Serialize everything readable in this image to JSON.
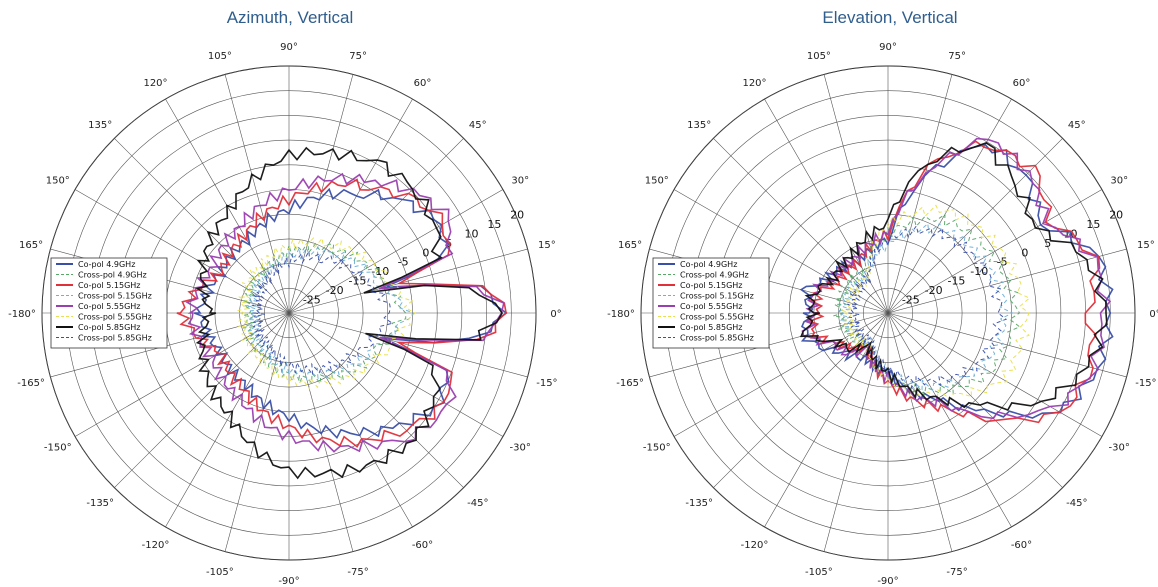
{
  "chart_data": [
    {
      "type": "polar-line",
      "title": "Azimuth, Vertical",
      "angle_ticks": [
        "0°",
        "15°",
        "30°",
        "45°",
        "60°",
        "75°",
        "90°",
        "105°",
        "120°",
        "135°",
        "150°",
        "165°",
        "-180°",
        "-165°",
        "-150°",
        "-135°",
        "-120°",
        "-105°",
        "-90°",
        "-75°",
        "-60°",
        "-45°",
        "-30°",
        "-15°"
      ],
      "r_ticks": [
        "-25",
        "-20",
        "-15",
        "-10",
        "-5",
        "0",
        "5",
        "10",
        "15",
        "20"
      ],
      "r_range": [
        -30,
        20
      ],
      "legend_position": "left",
      "legend": [
        "Co-pol 4.9GHz",
        "Cross-pol 4.9GHz",
        "Co-pol 5.15GHz",
        "Cross-pol 5.15GHz",
        "Co-pol 5.55GHz",
        "Cross-pol 5.55GHz",
        "Co-pol 5.85GHz",
        "Cross-pol 5.85GHz"
      ],
      "colors": [
        "#3a4fa8",
        "#58a868",
        "#e0303a",
        "#6fb0d8",
        "#9a3fb0",
        "#e8e050",
        "#111111",
        "#3a4fa8"
      ],
      "dashed": [
        false,
        true,
        false,
        true,
        false,
        true,
        false,
        true
      ],
      "series": [
        {
          "name": "Co-pol 4.9GHz",
          "angles": [
            -180,
            -150,
            -120,
            -90,
            -60,
            -45,
            -30,
            -20,
            -15,
            -8,
            0,
            8,
            15,
            20,
            30,
            45,
            60,
            90,
            120,
            150,
            180
          ],
          "values": [
            -12,
            -14,
            -13,
            -9,
            -2,
            2,
            6,
            3,
            -10,
            8,
            14,
            8,
            -10,
            3,
            6,
            2,
            -2,
            -9,
            -13,
            -14,
            -12
          ]
        },
        {
          "name": "Cross-pol 4.9GHz",
          "angles": [
            -180,
            -120,
            -60,
            -20,
            0,
            20,
            60,
            120,
            180
          ],
          "values": [
            -22,
            -20,
            -15,
            -10,
            -7,
            -10,
            -15,
            -20,
            -22
          ]
        },
        {
          "name": "Co-pol 5.15GHz",
          "angles": [
            -180,
            -150,
            -120,
            -90,
            -60,
            -45,
            -30,
            -20,
            -15,
            -8,
            0,
            8,
            15,
            20,
            30,
            45,
            60,
            90,
            120,
            150,
            180
          ],
          "values": [
            -8,
            -14,
            -12,
            -7,
            0,
            3,
            7,
            4,
            -8,
            9,
            15,
            9,
            -8,
            4,
            7,
            3,
            0,
            -7,
            -12,
            -14,
            -8
          ]
        },
        {
          "name": "Cross-pol 5.15GHz",
          "angles": [
            -180,
            -120,
            -60,
            -20,
            0,
            20,
            60,
            120,
            180
          ],
          "values": [
            -23,
            -21,
            -16,
            -11,
            -6,
            -11,
            -16,
            -21,
            -23
          ]
        },
        {
          "name": "Co-pol 5.55GHz",
          "angles": [
            -180,
            -150,
            -120,
            -90,
            -60,
            -45,
            -30,
            -20,
            -15,
            -8,
            0,
            8,
            15,
            20,
            30,
            45,
            60,
            90,
            120,
            150,
            180
          ],
          "values": [
            -10,
            -12,
            -10,
            -5,
            1,
            5,
            8,
            4,
            -12,
            9,
            14,
            9,
            -12,
            4,
            8,
            5,
            1,
            -5,
            -10,
            -12,
            -10
          ]
        },
        {
          "name": "Cross-pol 5.55GHz",
          "angles": [
            -180,
            -120,
            -60,
            -20,
            0,
            20,
            60,
            120,
            180
          ],
          "values": [
            -21,
            -19,
            -14,
            -9,
            -5,
            -9,
            -14,
            -19,
            -21
          ]
        },
        {
          "name": "Co-pol 5.85GHz",
          "angles": [
            -180,
            -150,
            -120,
            -90,
            -60,
            -45,
            -30,
            -20,
            -15,
            -8,
            0,
            8,
            15,
            20,
            30,
            45,
            60,
            90,
            120,
            150,
            180
          ],
          "values": [
            -14,
            -10,
            -6,
            2,
            5,
            6,
            4,
            2,
            -14,
            8,
            13,
            8,
            -14,
            2,
            4,
            6,
            5,
            2,
            -6,
            -10,
            -14
          ]
        },
        {
          "name": "Cross-pol 5.85GHz",
          "angles": [
            -180,
            -120,
            -60,
            -20,
            0,
            20,
            60,
            120,
            180
          ],
          "values": [
            -24,
            -22,
            -17,
            -13,
            -9,
            -13,
            -17,
            -22,
            -24
          ]
        }
      ]
    },
    {
      "type": "polar-line",
      "title": "Elevation, Vertical",
      "angle_ticks": [
        "0°",
        "15°",
        "30°",
        "45°",
        "60°",
        "75°",
        "90°",
        "105°",
        "120°",
        "135°",
        "150°",
        "165°",
        "-180°",
        "-165°",
        "-150°",
        "-135°",
        "-120°",
        "-105°",
        "-90°",
        "-75°",
        "-60°",
        "-45°",
        "-30°",
        "-15°"
      ],
      "r_ticks": [
        "-25",
        "-20",
        "-15",
        "-10",
        "-5",
        "0",
        "5",
        "10",
        "15",
        "20"
      ],
      "r_range": [
        -30,
        20
      ],
      "legend_position": "left",
      "legend": [
        "Co-pol 4.9GHz",
        "Cross-pol 4.9GHz",
        "Co-pol 5.15GHz",
        "Cross-pol 5.15GHz",
        "Co-pol 5.55GHz",
        "Cross-pol 5.55GHz",
        "Co-pol 5.85GHz",
        "Cross-pol 5.85GHz"
      ],
      "colors": [
        "#3a4fa8",
        "#58a868",
        "#e0303a",
        "#6fb0d8",
        "#9a3fb0",
        "#e8e050",
        "#111111",
        "#3a4fa8"
      ],
      "dashed": [
        false,
        true,
        false,
        true,
        false,
        true,
        false,
        true
      ],
      "series": [
        {
          "name": "Co-pol 4.9GHz",
          "angles": [
            -180,
            -165,
            -150,
            -135,
            -120,
            -90,
            -60,
            -45,
            -30,
            -15,
            0,
            15,
            30,
            45,
            60,
            75,
            90,
            120,
            150,
            165,
            180
          ],
          "values": [
            -14,
            -12,
            -16,
            -18,
            -20,
            -18,
            -10,
            -2,
            10,
            14,
            15,
            14,
            6,
            9,
            10,
            -2,
            -15,
            -18,
            -16,
            -13,
            -14
          ]
        },
        {
          "name": "Cross-pol 4.9GHz",
          "angles": [
            -180,
            -120,
            -60,
            -30,
            0,
            30,
            60,
            90,
            120,
            180
          ],
          "values": [
            -20,
            -22,
            -12,
            -6,
            -4,
            -6,
            -8,
            -14,
            -20,
            -20
          ]
        },
        {
          "name": "Co-pol 5.15GHz",
          "angles": [
            -180,
            -165,
            -150,
            -135,
            -120,
            -90,
            -60,
            -45,
            -30,
            -15,
            0,
            15,
            30,
            45,
            60,
            75,
            90,
            120,
            150,
            165,
            180
          ],
          "values": [
            -16,
            -14,
            -18,
            -20,
            -22,
            -16,
            -8,
            0,
            11,
            12,
            11,
            13,
            8,
            11,
            10,
            0,
            -14,
            -18,
            -18,
            -15,
            -16
          ]
        },
        {
          "name": "Cross-pol 5.15GHz",
          "angles": [
            -180,
            -120,
            -60,
            -30,
            0,
            30,
            60,
            90,
            120,
            180
          ],
          "values": [
            -21,
            -23,
            -13,
            -8,
            -6,
            -8,
            -10,
            -16,
            -21,
            -21
          ]
        },
        {
          "name": "Co-pol 5.55GHz",
          "angles": [
            -180,
            -165,
            -150,
            -135,
            -120,
            -90,
            -60,
            -45,
            -30,
            -15,
            0,
            15,
            30,
            45,
            60,
            75,
            90,
            120,
            150,
            165,
            180
          ],
          "values": [
            -15,
            -13,
            -17,
            -19,
            -21,
            -17,
            -9,
            -1,
            9,
            13,
            14,
            13,
            7,
            10,
            11,
            -1,
            -14,
            -17,
            -17,
            -14,
            -15
          ]
        },
        {
          "name": "Cross-pol 5.55GHz",
          "angles": [
            -180,
            -120,
            -60,
            -30,
            0,
            30,
            60,
            90,
            120,
            180
          ],
          "values": [
            -22,
            -22,
            -11,
            -3,
            -2,
            -4,
            -6,
            -12,
            -22,
            -22
          ]
        },
        {
          "name": "Co-pol 5.85GHz",
          "angles": [
            -180,
            -165,
            -150,
            -135,
            -120,
            -90,
            -60,
            -45,
            -30,
            -15,
            0,
            15,
            30,
            45,
            60,
            75,
            90,
            120,
            150,
            165,
            180
          ],
          "values": [
            -15,
            -13,
            -18,
            -20,
            -22,
            -18,
            -10,
            -4,
            6,
            12,
            14,
            12,
            4,
            7,
            9,
            2,
            -12,
            -16,
            -17,
            -14,
            -15
          ]
        },
        {
          "name": "Cross-pol 5.85GHz",
          "angles": [
            -180,
            -120,
            -60,
            -30,
            0,
            30,
            60,
            90,
            120,
            180
          ],
          "values": [
            -23,
            -23,
            -14,
            -9,
            -7,
            -9,
            -11,
            -15,
            -22,
            -23
          ]
        }
      ]
    }
  ]
}
